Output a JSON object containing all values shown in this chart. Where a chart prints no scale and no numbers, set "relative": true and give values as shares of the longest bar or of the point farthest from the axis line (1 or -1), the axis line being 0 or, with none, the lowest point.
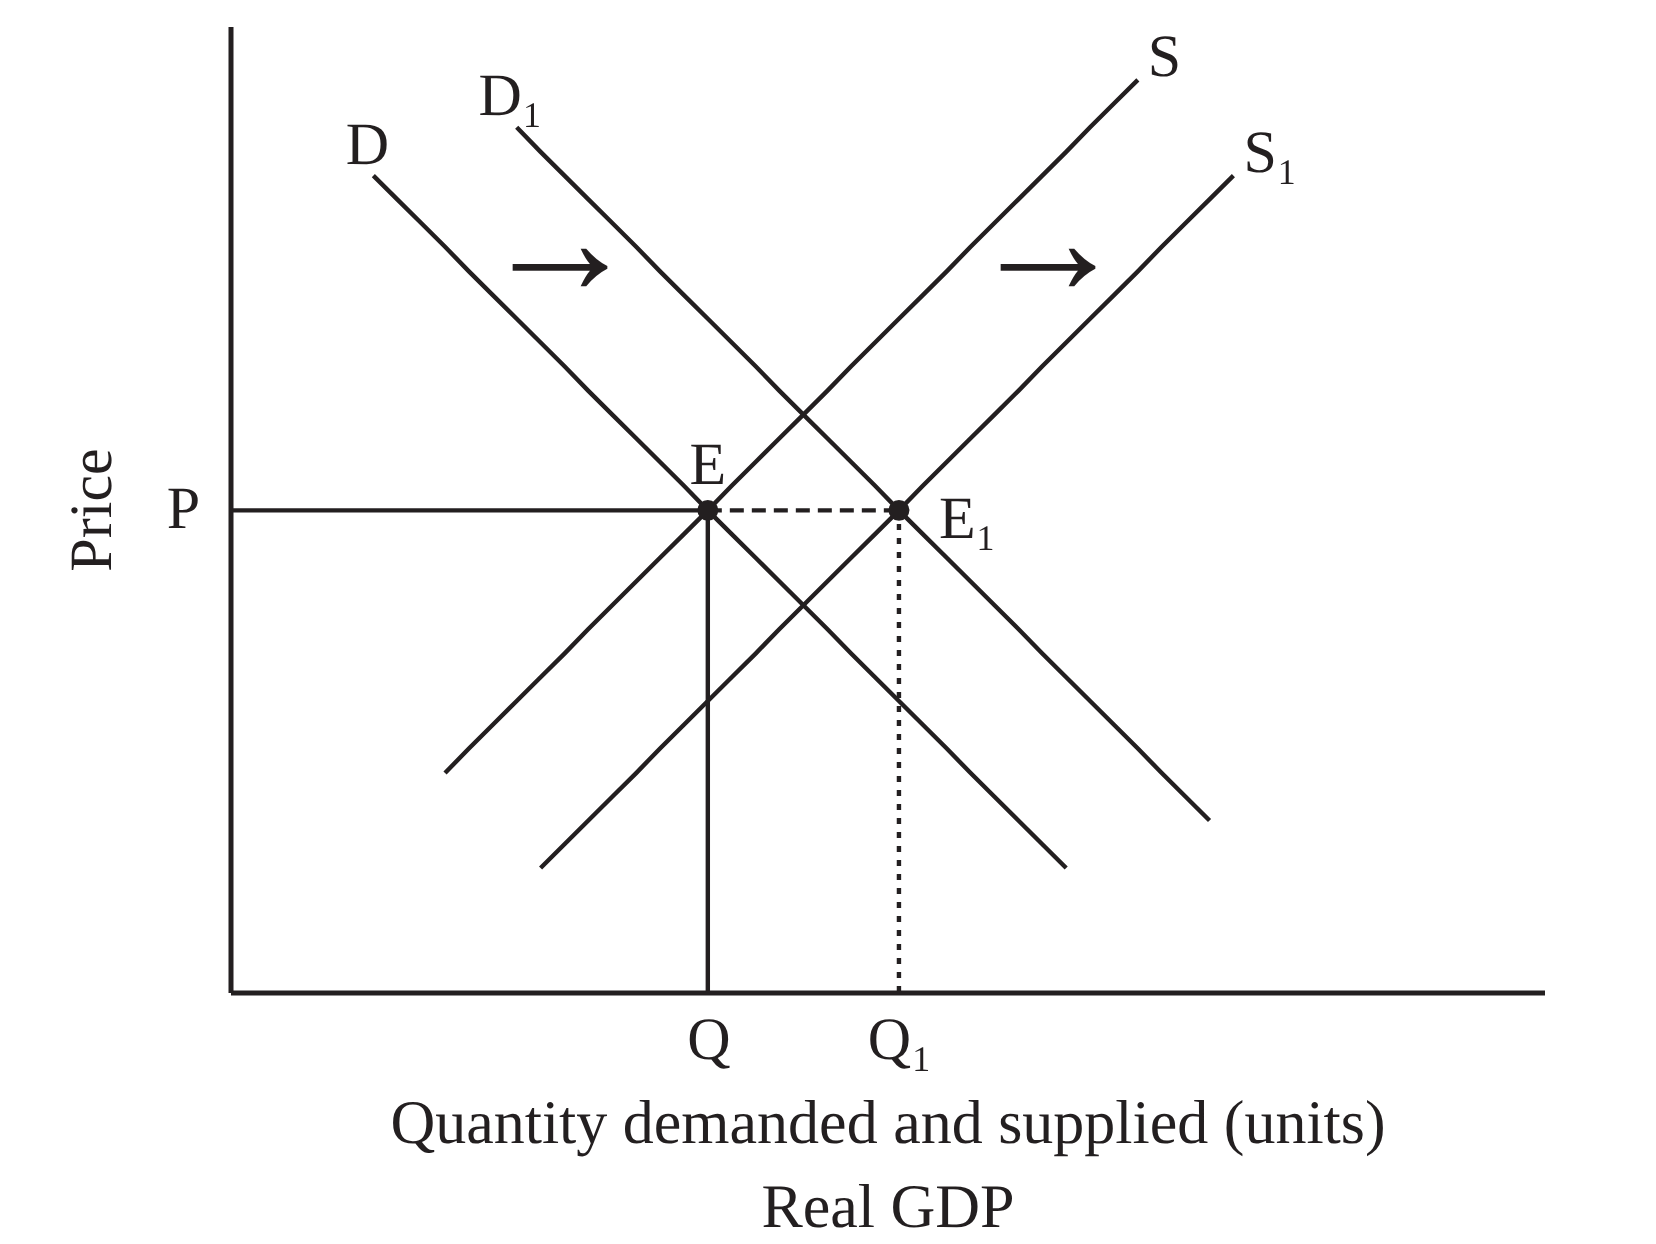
{
  "chart_data": {
    "type": "line",
    "relative": true,
    "xlabel": "Quantity demanded and supplied (units)\nReal GDP",
    "ylabel": "Price",
    "categories": [
      null,
      null,
      null,
      null,
      null,
      null,
      null,
      null,
      null,
      null,
      null,
      null,
      null,
      null,
      null,
      null,
      null,
      null,
      null,
      null,
      "Q",
      null,
      null,
      null,
      null,
      null,
      null,
      null,
      "Q₁",
      null,
      null,
      null,
      null,
      null,
      null,
      null,
      null,
      null,
      null,
      null,
      null,
      null,
      null,
      null,
      null,
      null,
      null,
      null,
      null,
      null,
      null,
      null,
      null,
      null,
      null,
      null
    ],
    "series": [
      {
        "name": "D",
        "color": "#231f20",
        "values": [
          null,
          null,
          null,
          null,
          null,
          null,
          0.895,
          0.869,
          0.843,
          0.817,
          0.79,
          0.764,
          0.738,
          0.712,
          0.686,
          0.659,
          0.633,
          0.607,
          0.581,
          0.555,
          0.528,
          0.502,
          0.476,
          0.45,
          0.424,
          0.398,
          0.371,
          0.345,
          0.319,
          0.293,
          0.267,
          0.24,
          0.214,
          0.188,
          0.162,
          0.136,
          null,
          null,
          null,
          null,
          null,
          null,
          null,
          null,
          null,
          null,
          null,
          null,
          null,
          null,
          null,
          null,
          null,
          null,
          null,
          null
        ]
      },
      {
        "name": "D₁",
        "color": "#231f20",
        "values": [
          null,
          null,
          null,
          null,
          null,
          null,
          null,
          null,
          null,
          null,
          null,
          null,
          0.948,
          0.921,
          0.895,
          0.869,
          0.843,
          0.817,
          0.79,
          0.764,
          0.738,
          0.712,
          0.686,
          0.659,
          0.633,
          0.607,
          0.581,
          0.555,
          0.528,
          0.502,
          0.476,
          0.45,
          0.424,
          0.398,
          0.371,
          0.345,
          0.319,
          0.293,
          0.267,
          0.24,
          0.214,
          0.188,
          null,
          null,
          null,
          null,
          null,
          null,
          null,
          null,
          null,
          null,
          null,
          null,
          null,
          null
        ]
      },
      {
        "name": "S",
        "color": "#231f20",
        "values": [
          null,
          null,
          null,
          null,
          null,
          null,
          null,
          null,
          null,
          0.24,
          0.267,
          0.293,
          0.319,
          0.345,
          0.371,
          0.398,
          0.424,
          0.45,
          0.476,
          0.502,
          0.528,
          0.555,
          0.581,
          0.607,
          0.633,
          0.659,
          0.686,
          0.712,
          0.738,
          0.764,
          0.79,
          0.817,
          0.843,
          0.869,
          0.895,
          0.921,
          0.948,
          0.974,
          1,
          null,
          null,
          null,
          null,
          null,
          null,
          null,
          null,
          null,
          null,
          null,
          null,
          null,
          null,
          null,
          null,
          null
        ]
      },
      {
        "name": "S₁",
        "color": "#231f20",
        "values": [
          null,
          null,
          null,
          null,
          null,
          null,
          null,
          null,
          null,
          null,
          null,
          null,
          null,
          0.136,
          0.162,
          0.188,
          0.214,
          0.24,
          0.267,
          0.293,
          0.319,
          0.345,
          0.371,
          0.398,
          0.424,
          0.45,
          0.476,
          0.502,
          0.528,
          0.555,
          0.581,
          0.607,
          0.633,
          0.659,
          0.686,
          0.712,
          0.738,
          0.764,
          0.79,
          0.817,
          0.843,
          0.869,
          0.895,
          null,
          null,
          null,
          null,
          null,
          null,
          null,
          null,
          null,
          null,
          null,
          null,
          null
        ]
      },
      {
        "line_style": "solid",
        "color": "#231f20",
        "values": [
          0.528,
          0.528,
          0.528,
          0.528,
          0.528,
          0.528,
          0.528,
          0.528,
          0.528,
          0.528,
          0.528,
          0.528,
          0.528,
          0.528,
          0.528,
          0.528,
          0.528,
          0.528,
          0.528,
          0.528,
          0.528,
          null,
          null,
          null,
          null,
          null,
          null,
          null,
          null,
          null,
          null,
          null,
          null,
          null,
          null,
          null,
          null,
          null,
          null,
          null,
          null,
          null,
          null,
          null,
          null,
          null,
          null,
          null,
          null,
          null,
          null,
          null,
          null,
          null,
          null,
          null
        ]
      },
      {
        "line_style": "dashed",
        "color": "#231f20",
        "values": [
          null,
          null,
          null,
          null,
          null,
          null,
          null,
          null,
          null,
          null,
          null,
          null,
          null,
          null,
          null,
          null,
          null,
          null,
          null,
          null,
          0.528,
          0.528,
          0.528,
          0.528,
          0.528,
          0.528,
          0.528,
          0.528,
          0.528,
          null,
          null,
          null,
          null,
          null,
          null,
          null,
          null,
          null,
          null,
          null,
          null,
          null,
          null,
          null,
          null,
          null,
          null,
          null,
          null,
          null,
          null,
          null,
          null,
          null,
          null,
          null
        ]
      },
      {
        "line_style": "solid",
        "color": "#231f20",
        "x": [
          "Q",
          "Q"
        ],
        "values": [
          0,
          0.528
        ]
      },
      {
        "line_style": "dotted",
        "color": "#231f20",
        "x": [
          "Q₁",
          "Q₁"
        ],
        "values": [
          0,
          0.528
        ]
      },
      {
        "type": "scatter",
        "marker": "circle",
        "color": "#231f20",
        "x": [
          "Q",
          "Q₁"
        ],
        "values": [
          0.528,
          0.528
        ]
      }
    ],
    "annotations": [
      "P",
      {
        "text": "E",
        "x": "Q",
        "y": 0.528
      },
      {
        "text": "E₁",
        "x": "Q₁",
        "y": 0.528
      },
      "→",
      "→"
    ]
  }
}
